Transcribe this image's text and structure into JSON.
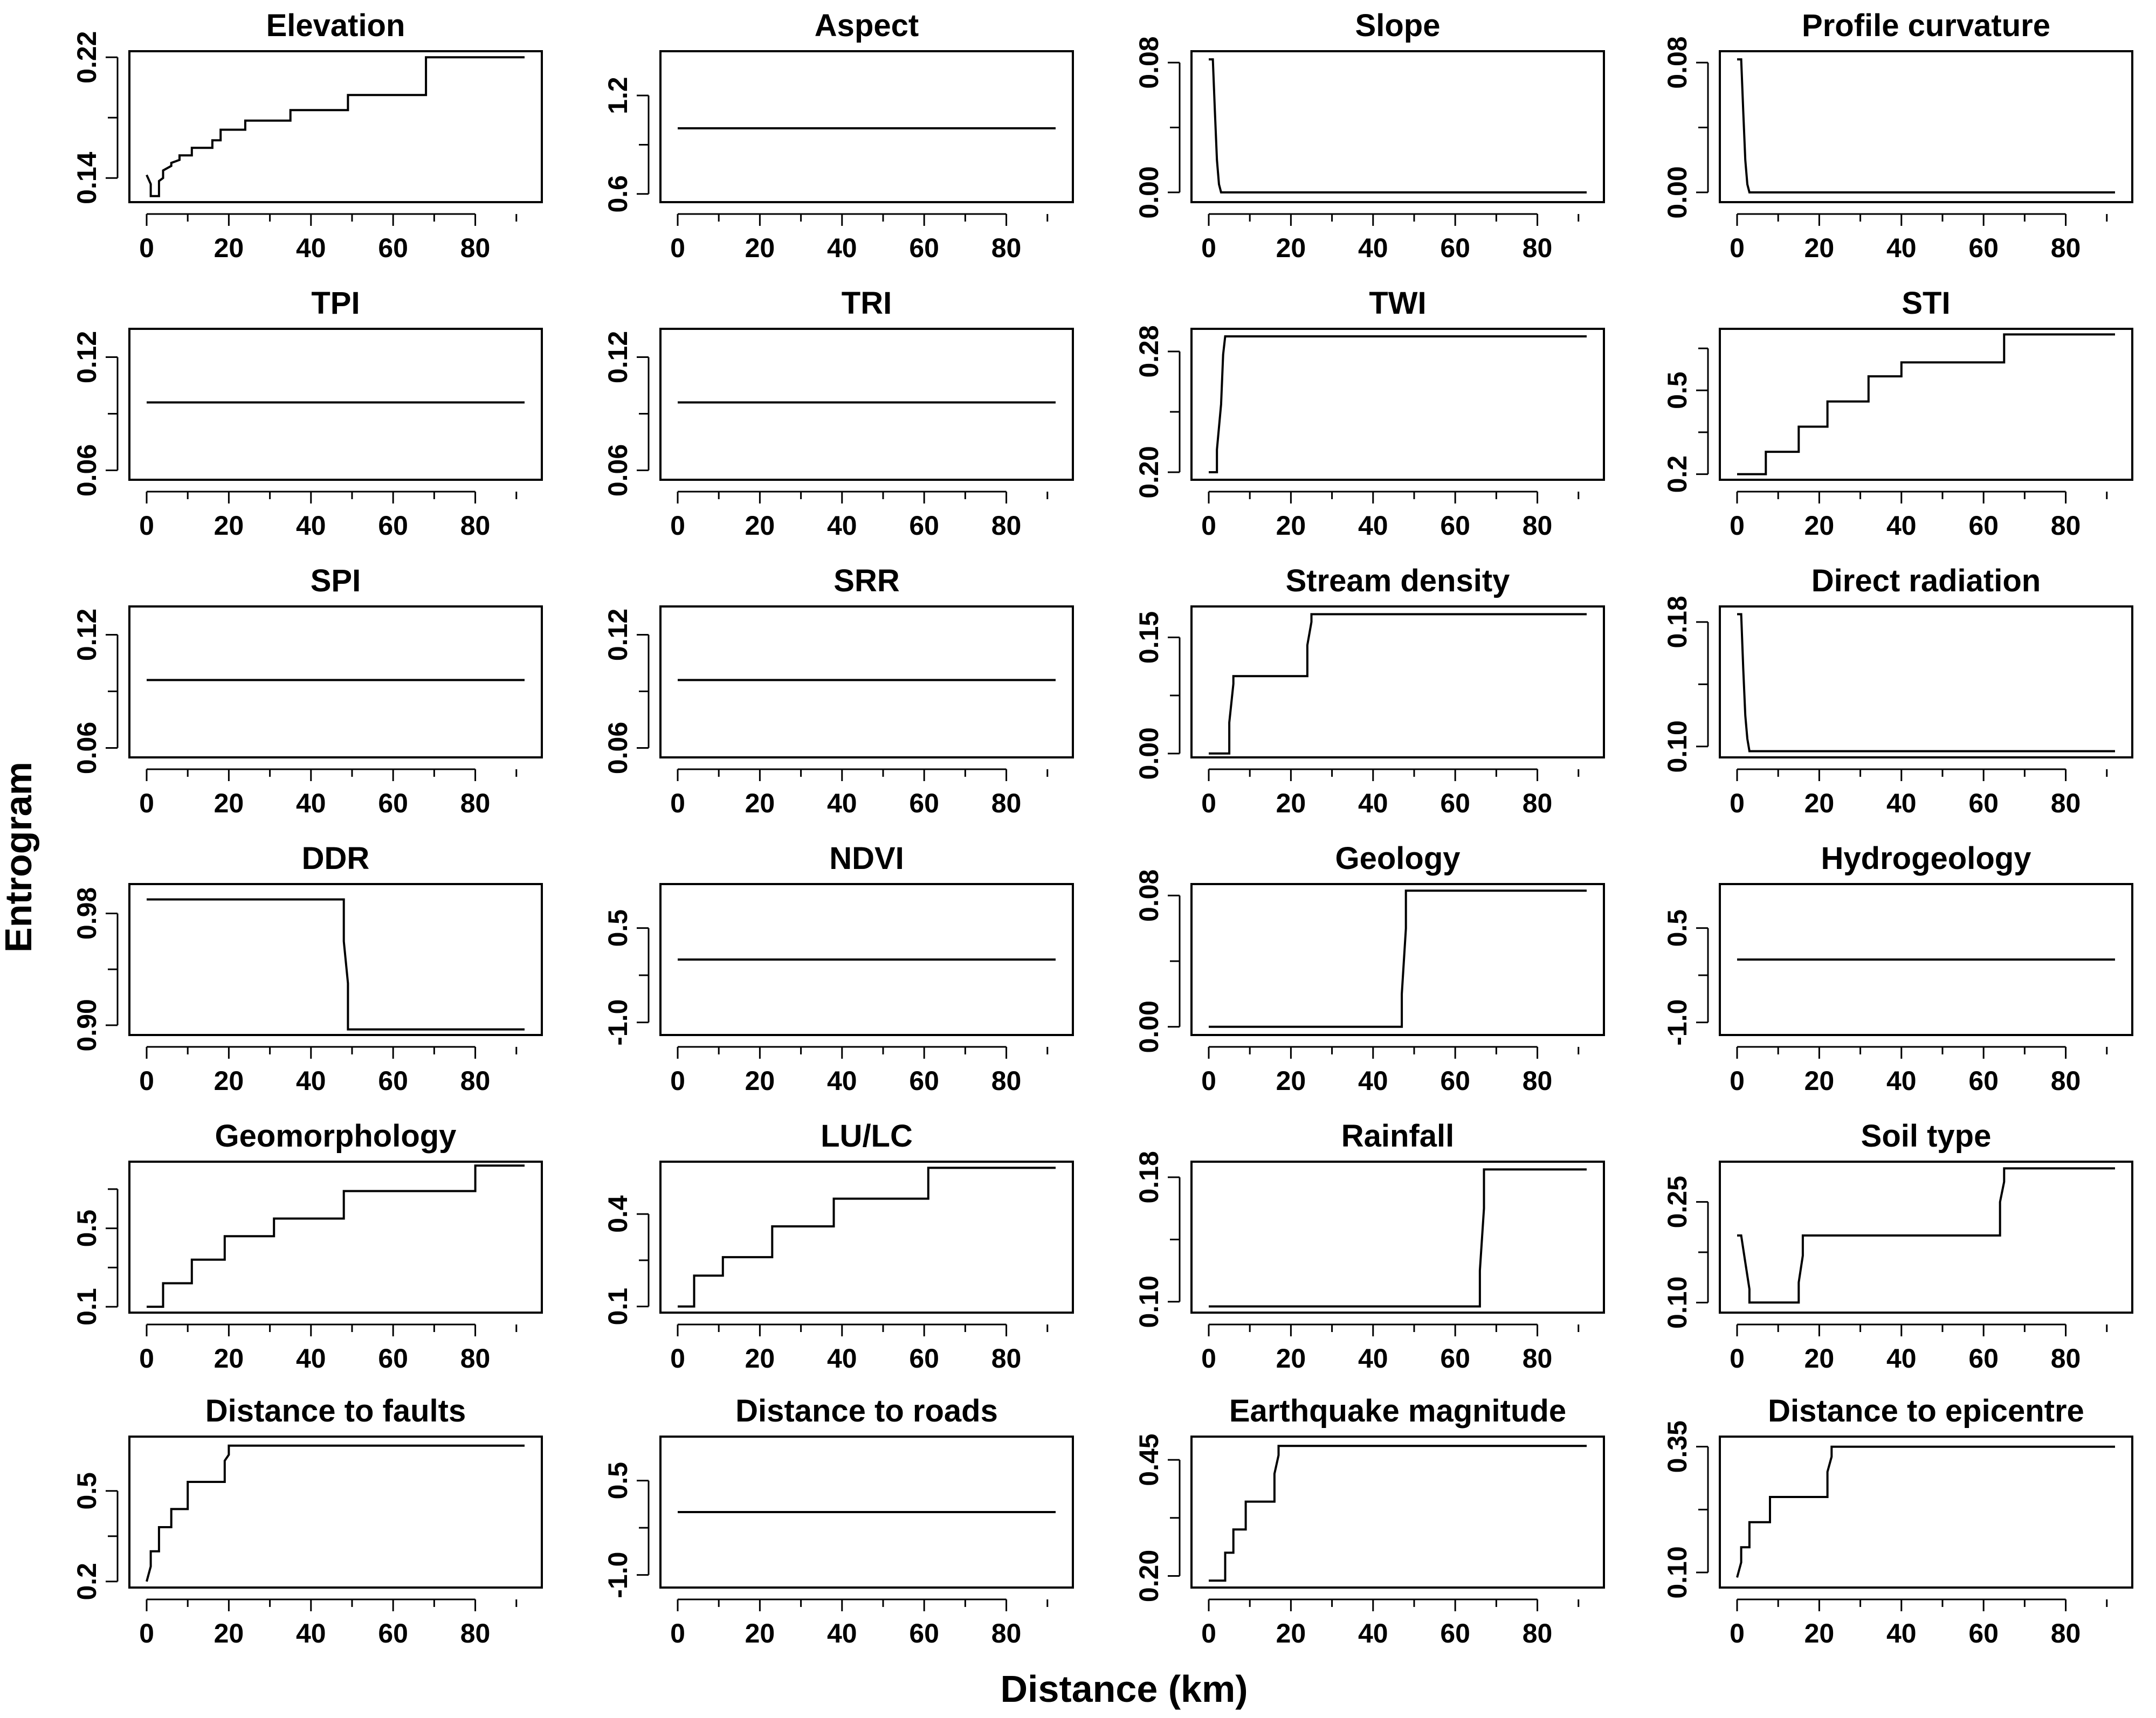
{
  "figure": {
    "xlabel": "Distance (km)",
    "ylabel": "Entrogram"
  },
  "chart_data": [
    {
      "type": "line",
      "title": "Elevation",
      "xlim": [
        0,
        92
      ],
      "ylim": [
        0.124,
        0.224
      ],
      "xticks": [
        "0",
        "20",
        "40",
        "60",
        "80"
      ],
      "yticks": [
        {
          "v": 0.14,
          "label": "0.14"
        },
        {
          "v": 0.22,
          "label": "0.22"
        }
      ],
      "yminor": [
        0.18
      ],
      "x": [
        0,
        1,
        1,
        3,
        3,
        4,
        4,
        6,
        6,
        8,
        8,
        11,
        11,
        16,
        16,
        18,
        18,
        24,
        24,
        35,
        35,
        49,
        49,
        68,
        68,
        92
      ],
      "y": [
        0.142,
        0.136,
        0.128,
        0.128,
        0.138,
        0.14,
        0.145,
        0.148,
        0.15,
        0.152,
        0.155,
        0.155,
        0.16,
        0.16,
        0.165,
        0.165,
        0.172,
        0.172,
        0.178,
        0.178,
        0.185,
        0.185,
        0.195,
        0.195,
        0.22,
        0.22
      ]
    },
    {
      "type": "line",
      "title": "Aspect",
      "xlim": [
        0,
        92
      ],
      "ylim": [
        0.55,
        1.47
      ],
      "xticks": [
        "0",
        "20",
        "40",
        "60",
        "80"
      ],
      "yticks": [
        {
          "v": 0.6,
          "label": "0.6"
        },
        {
          "v": 1.2,
          "label": "1.2"
        }
      ],
      "yminor": [
        0.9
      ],
      "x": [
        0,
        92
      ],
      "y": [
        1.0,
        1.0
      ]
    },
    {
      "type": "line",
      "title": "Slope",
      "xlim": [
        0,
        92
      ],
      "ylim": [
        -0.006,
        0.087
      ],
      "xticks": [
        "0",
        "20",
        "40",
        "60",
        "80"
      ],
      "yticks": [
        {
          "v": 0.0,
          "label": "0.00"
        },
        {
          "v": 0.08,
          "label": "0.08"
        }
      ],
      "yminor": [
        0.04
      ],
      "x": [
        0,
        1,
        1.5,
        2,
        2.5,
        3,
        92
      ],
      "y": [
        0.082,
        0.082,
        0.05,
        0.02,
        0.005,
        0.0,
        0.0
      ]
    },
    {
      "type": "line",
      "title": "Profile curvature",
      "xlim": [
        0,
        92
      ],
      "ylim": [
        -0.006,
        0.087
      ],
      "xticks": [
        "0",
        "20",
        "40",
        "60",
        "80"
      ],
      "yticks": [
        {
          "v": 0.0,
          "label": "0.00"
        },
        {
          "v": 0.08,
          "label": "0.08"
        }
      ],
      "yminor": [
        0.04
      ],
      "x": [
        0,
        1,
        1.5,
        2,
        2.5,
        3,
        92
      ],
      "y": [
        0.082,
        0.082,
        0.05,
        0.02,
        0.005,
        0.0,
        0.0
      ]
    },
    {
      "type": "line",
      "title": "TPI",
      "xlim": [
        0,
        92
      ],
      "ylim": [
        0.055,
        0.135
      ],
      "xticks": [
        "0",
        "20",
        "40",
        "60",
        "80"
      ],
      "yticks": [
        {
          "v": 0.06,
          "label": "0.06"
        },
        {
          "v": 0.12,
          "label": "0.12"
        }
      ],
      "yminor": [
        0.09
      ],
      "x": [
        0,
        92
      ],
      "y": [
        0.096,
        0.096
      ]
    },
    {
      "type": "line",
      "title": "TRI",
      "xlim": [
        0,
        92
      ],
      "ylim": [
        0.055,
        0.135
      ],
      "xticks": [
        "0",
        "20",
        "40",
        "60",
        "80"
      ],
      "yticks": [
        {
          "v": 0.06,
          "label": "0.06"
        },
        {
          "v": 0.12,
          "label": "0.12"
        }
      ],
      "yminor": [
        0.09
      ],
      "x": [
        0,
        92
      ],
      "y": [
        0.096,
        0.096
      ]
    },
    {
      "type": "line",
      "title": "TWI",
      "xlim": [
        0,
        92
      ],
      "ylim": [
        0.195,
        0.295
      ],
      "xticks": [
        "0",
        "20",
        "40",
        "60",
        "80"
      ],
      "yticks": [
        {
          "v": 0.2,
          "label": "0.20"
        },
        {
          "v": 0.28,
          "label": "0.28"
        }
      ],
      "yminor": [
        0.24
      ],
      "x": [
        0,
        2,
        2,
        3,
        3.5,
        4,
        92
      ],
      "y": [
        0.2,
        0.2,
        0.215,
        0.245,
        0.278,
        0.29,
        0.29
      ]
    },
    {
      "type": "line",
      "title": "STI",
      "xlim": [
        0,
        92
      ],
      "ylim": [
        0.18,
        0.72
      ],
      "xticks": [
        "0",
        "20",
        "40",
        "60",
        "80"
      ],
      "yticks": [
        {
          "v": 0.2,
          "label": "0.2"
        },
        {
          "v": 0.5,
          "label": "0.5"
        }
      ],
      "yminor": [
        0.35,
        0.65
      ],
      "x": [
        0,
        7,
        7,
        15,
        15,
        22,
        22,
        32,
        32,
        40,
        40,
        65,
        65,
        92
      ],
      "y": [
        0.2,
        0.2,
        0.28,
        0.28,
        0.37,
        0.37,
        0.46,
        0.46,
        0.55,
        0.55,
        0.6,
        0.6,
        0.7,
        0.7
      ]
    },
    {
      "type": "line",
      "title": "SPI",
      "xlim": [
        0,
        92
      ],
      "ylim": [
        0.055,
        0.135
      ],
      "xticks": [
        "0",
        "20",
        "40",
        "60",
        "80"
      ],
      "yticks": [
        {
          "v": 0.06,
          "label": "0.06"
        },
        {
          "v": 0.12,
          "label": "0.12"
        }
      ],
      "yminor": [
        0.09
      ],
      "x": [
        0,
        92
      ],
      "y": [
        0.096,
        0.096
      ]
    },
    {
      "type": "line",
      "title": "SRR",
      "xlim": [
        0,
        92
      ],
      "ylim": [
        0.055,
        0.135
      ],
      "xticks": [
        "0",
        "20",
        "40",
        "60",
        "80"
      ],
      "yticks": [
        {
          "v": 0.06,
          "label": "0.06"
        },
        {
          "v": 0.12,
          "label": "0.12"
        }
      ],
      "yminor": [
        0.09
      ],
      "x": [
        0,
        92
      ],
      "y": [
        0.096,
        0.096
      ]
    },
    {
      "type": "line",
      "title": "Stream density",
      "xlim": [
        0,
        92
      ],
      "ylim": [
        -0.005,
        0.19
      ],
      "xticks": [
        "0",
        "20",
        "40",
        "60",
        "80"
      ],
      "yticks": [
        {
          "v": 0.0,
          "label": "0.00"
        },
        {
          "v": 0.15,
          "label": "0.15"
        }
      ],
      "yminor": [
        0.075
      ],
      "x": [
        0,
        5,
        5,
        6,
        6,
        24,
        24,
        25,
        25,
        92
      ],
      "y": [
        0.0,
        0.0,
        0.04,
        0.09,
        0.1,
        0.1,
        0.14,
        0.17,
        0.18,
        0.18
      ]
    },
    {
      "type": "line",
      "title": "Direct radiation",
      "xlim": [
        0,
        92
      ],
      "ylim": [
        0.093,
        0.19
      ],
      "xticks": [
        "0",
        "20",
        "40",
        "60",
        "80"
      ],
      "yticks": [
        {
          "v": 0.1,
          "label": "0.10"
        },
        {
          "v": 0.18,
          "label": "0.18"
        }
      ],
      "yminor": [
        0.14
      ],
      "x": [
        0,
        1,
        1.5,
        2,
        2.5,
        3,
        92
      ],
      "y": [
        0.185,
        0.185,
        0.15,
        0.12,
        0.105,
        0.097,
        0.097
      ]
    },
    {
      "type": "line",
      "title": "DDR",
      "xlim": [
        0,
        92
      ],
      "ylim": [
        0.893,
        1.001
      ],
      "xticks": [
        "0",
        "20",
        "40",
        "60",
        "80"
      ],
      "yticks": [
        {
          "v": 0.9,
          "label": "0.90"
        },
        {
          "v": 0.98,
          "label": "0.98"
        }
      ],
      "yminor": [
        0.94
      ],
      "x": [
        0,
        48,
        48,
        49,
        49,
        92
      ],
      "y": [
        0.99,
        0.99,
        0.96,
        0.93,
        0.897,
        0.897
      ]
    },
    {
      "type": "line",
      "title": "NDVI",
      "xlim": [
        0,
        92
      ],
      "ylim": [
        -1.2,
        1.2
      ],
      "xticks": [
        "0",
        "20",
        "40",
        "60",
        "80"
      ],
      "yticks": [
        {
          "v": -1.0,
          "label": "-1.0"
        },
        {
          "v": 0.5,
          "label": "0.5"
        }
      ],
      "yminor": [
        -0.25
      ],
      "x": [
        0,
        92
      ],
      "y": [
        0.0,
        0.0
      ]
    },
    {
      "type": "line",
      "title": "Geology",
      "xlim": [
        0,
        92
      ],
      "ylim": [
        -0.005,
        0.087
      ],
      "xticks": [
        "0",
        "20",
        "40",
        "60",
        "80"
      ],
      "yticks": [
        {
          "v": 0.0,
          "label": "0.00"
        },
        {
          "v": 0.08,
          "label": "0.08"
        }
      ],
      "yminor": [
        0.04
      ],
      "x": [
        0,
        47,
        47,
        48,
        48,
        92
      ],
      "y": [
        0.0,
        0.0,
        0.02,
        0.06,
        0.083,
        0.083
      ]
    },
    {
      "type": "line",
      "title": "Hydrogeology",
      "xlim": [
        0,
        92
      ],
      "ylim": [
        -1.2,
        1.2
      ],
      "xticks": [
        "0",
        "20",
        "40",
        "60",
        "80"
      ],
      "yticks": [
        {
          "v": -1.0,
          "label": "-1.0"
        },
        {
          "v": 0.5,
          "label": "0.5"
        }
      ],
      "yminor": [
        -0.25
      ],
      "x": [
        0,
        92
      ],
      "y": [
        0.0,
        0.0
      ]
    },
    {
      "type": "line",
      "title": "Geomorphology",
      "xlim": [
        0,
        92
      ],
      "ylim": [
        0.07,
        0.84
      ],
      "xticks": [
        "0",
        "20",
        "40",
        "60",
        "80"
      ],
      "yticks": [
        {
          "v": 0.1,
          "label": "0.1"
        },
        {
          "v": 0.5,
          "label": "0.5"
        }
      ],
      "yminor": [
        0.3,
        0.7
      ],
      "x": [
        0,
        4,
        4,
        11,
        11,
        19,
        19,
        31,
        31,
        48,
        48,
        80,
        80,
        92
      ],
      "y": [
        0.1,
        0.1,
        0.22,
        0.22,
        0.34,
        0.34,
        0.46,
        0.46,
        0.55,
        0.55,
        0.69,
        0.69,
        0.82,
        0.82
      ]
    },
    {
      "type": "line",
      "title": "LU/LC",
      "xlim": [
        0,
        92
      ],
      "ylim": [
        0.08,
        0.57
      ],
      "xticks": [
        "0",
        "20",
        "40",
        "60",
        "80"
      ],
      "yticks": [
        {
          "v": 0.1,
          "label": "0.1"
        },
        {
          "v": 0.4,
          "label": "0.4"
        }
      ],
      "yminor": [
        0.25
      ],
      "x": [
        0,
        4,
        4,
        11,
        11,
        23,
        23,
        38,
        38,
        61,
        61,
        92
      ],
      "y": [
        0.1,
        0.1,
        0.2,
        0.2,
        0.26,
        0.26,
        0.36,
        0.36,
        0.45,
        0.45,
        0.55,
        0.55
      ]
    },
    {
      "type": "line",
      "title": "Rainfall",
      "xlim": [
        0,
        92
      ],
      "ylim": [
        0.093,
        0.19
      ],
      "xticks": [
        "0",
        "20",
        "40",
        "60",
        "80"
      ],
      "yticks": [
        {
          "v": 0.1,
          "label": "0.10"
        },
        {
          "v": 0.18,
          "label": "0.18"
        }
      ],
      "yminor": [
        0.14
      ],
      "x": [
        0,
        66,
        66,
        67,
        67,
        92
      ],
      "y": [
        0.097,
        0.097,
        0.12,
        0.16,
        0.185,
        0.185
      ]
    },
    {
      "type": "line",
      "title": "Soil type",
      "xlim": [
        0,
        92
      ],
      "ylim": [
        0.085,
        0.31
      ],
      "xticks": [
        "0",
        "20",
        "40",
        "60",
        "80"
      ],
      "yticks": [
        {
          "v": 0.1,
          "label": "0.10"
        },
        {
          "v": 0.25,
          "label": "0.25"
        }
      ],
      "yminor": [
        0.175
      ],
      "x": [
        0,
        1,
        2,
        3,
        3,
        15,
        15,
        16,
        16,
        64,
        64,
        65,
        65,
        92
      ],
      "y": [
        0.2,
        0.2,
        0.16,
        0.12,
        0.1,
        0.1,
        0.13,
        0.17,
        0.2,
        0.2,
        0.25,
        0.28,
        0.3,
        0.3
      ]
    },
    {
      "type": "line",
      "title": "Distance to faults",
      "xlim": [
        0,
        92
      ],
      "ylim": [
        0.18,
        0.68
      ],
      "xticks": [
        "0",
        "20",
        "40",
        "60",
        "80"
      ],
      "yticks": [
        {
          "v": 0.2,
          "label": "0.2"
        },
        {
          "v": 0.5,
          "label": "0.5"
        }
      ],
      "yminor": [
        0.35
      ],
      "x": [
        0,
        1,
        1,
        3,
        3,
        6,
        6,
        10,
        10,
        19,
        19,
        20,
        20,
        92
      ],
      "y": [
        0.2,
        0.25,
        0.3,
        0.3,
        0.38,
        0.38,
        0.44,
        0.44,
        0.53,
        0.53,
        0.6,
        0.62,
        0.65,
        0.65
      ]
    },
    {
      "type": "line",
      "title": "Distance to roads",
      "xlim": [
        0,
        92
      ],
      "ylim": [
        -1.2,
        1.2
      ],
      "xticks": [
        "0",
        "20",
        "40",
        "60",
        "80"
      ],
      "yticks": [
        {
          "v": -1.0,
          "label": "-1.0"
        },
        {
          "v": 0.5,
          "label": "0.5"
        }
      ],
      "yminor": [
        -0.25
      ],
      "x": [
        0,
        92
      ],
      "y": [
        0.0,
        0.0
      ]
    },
    {
      "type": "line",
      "title": "Earthquake magnitude",
      "xlim": [
        0,
        92
      ],
      "ylim": [
        0.175,
        0.5
      ],
      "xticks": [
        "0",
        "20",
        "40",
        "60",
        "80"
      ],
      "yticks": [
        {
          "v": 0.2,
          "label": "0.20"
        },
        {
          "v": 0.45,
          "label": "0.45"
        }
      ],
      "yminor": [
        0.325
      ],
      "x": [
        0,
        4,
        4,
        6,
        6,
        9,
        9,
        16,
        16,
        17,
        17,
        92
      ],
      "y": [
        0.19,
        0.19,
        0.25,
        0.25,
        0.3,
        0.3,
        0.36,
        0.36,
        0.42,
        0.46,
        0.48,
        0.48
      ]
    },
    {
      "type": "line",
      "title": "Distance to epicentre",
      "xlim": [
        0,
        92
      ],
      "ylim": [
        0.07,
        0.37
      ],
      "xticks": [
        "0",
        "20",
        "40",
        "60",
        "80"
      ],
      "yticks": [
        {
          "v": 0.1,
          "label": "0.10"
        },
        {
          "v": 0.35,
          "label": "0.35"
        }
      ],
      "yminor": [
        0.225
      ],
      "x": [
        0,
        1,
        1,
        3,
        3,
        8,
        8,
        22,
        22,
        23,
        23,
        92
      ],
      "y": [
        0.09,
        0.12,
        0.15,
        0.15,
        0.2,
        0.2,
        0.25,
        0.25,
        0.3,
        0.33,
        0.35,
        0.35
      ]
    }
  ]
}
